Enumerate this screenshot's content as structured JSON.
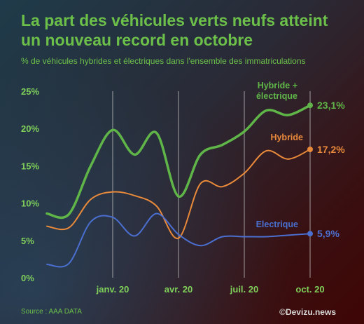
{
  "header": {
    "title": "La part des véhicules verts neufs atteint un nouveau record en octobre",
    "subtitle": "% de véhicules hybrides et électriques dans l'ensemble des immatriculations"
  },
  "footer": {
    "source": "Source : AAA DATA",
    "credit": "©Devizu.news"
  },
  "colors": {
    "green": "#5fb548",
    "orange": "#e9893a",
    "blue": "#4a6fd0",
    "grid": "#c8c8c8",
    "tick": "#7fcf5a"
  },
  "chart_data": {
    "type": "line",
    "title": "La part des véhicules verts neufs atteint un nouveau record en octobre",
    "subtitle": "% de véhicules hybrides et électriques dans l'ensemble des immatriculations",
    "ylim": [
      0,
      25
    ],
    "yticks": [
      0,
      5,
      10,
      15,
      20,
      25
    ],
    "ytick_labels": [
      "0%",
      "5%",
      "10%",
      "15%",
      "20%",
      "25%"
    ],
    "xlim": [
      "2019-10",
      "2020-10"
    ],
    "x": [
      "2019-10",
      "2019-11",
      "2019-12",
      "2020-01",
      "2020-02",
      "2020-03",
      "2020-04",
      "2020-05",
      "2020-06",
      "2020-07",
      "2020-08",
      "2020-09",
      "2020-10"
    ],
    "xticks": [
      "2020-01",
      "2020-04",
      "2020-07",
      "2020-10"
    ],
    "xtick_labels": [
      "janv. 20",
      "avr. 20",
      "juil. 20",
      "oct. 20"
    ],
    "grid": "vertical lines at x ticks",
    "series": [
      {
        "name": "Hybride + électrique",
        "color": "#5fb548",
        "values": [
          8.6,
          8.5,
          15.0,
          19.8,
          16.5,
          19.4,
          10.9,
          16.5,
          17.8,
          19.6,
          22.4,
          21.8,
          23.1
        ],
        "end_label": "23,1%"
      },
      {
        "name": "Hybride",
        "color": "#e9893a",
        "values": [
          6.9,
          6.7,
          10.5,
          11.5,
          11.0,
          9.6,
          5.3,
          12.6,
          12.2,
          14.0,
          17.0,
          15.9,
          17.2
        ],
        "end_label": "17,2%"
      },
      {
        "name": "Electrique",
        "color": "#4a6fd0",
        "values": [
          1.8,
          1.9,
          7.5,
          8.1,
          5.6,
          8.6,
          5.8,
          4.3,
          5.5,
          5.5,
          5.5,
          5.7,
          5.9
        ],
        "end_label": "5,9%"
      }
    ]
  }
}
